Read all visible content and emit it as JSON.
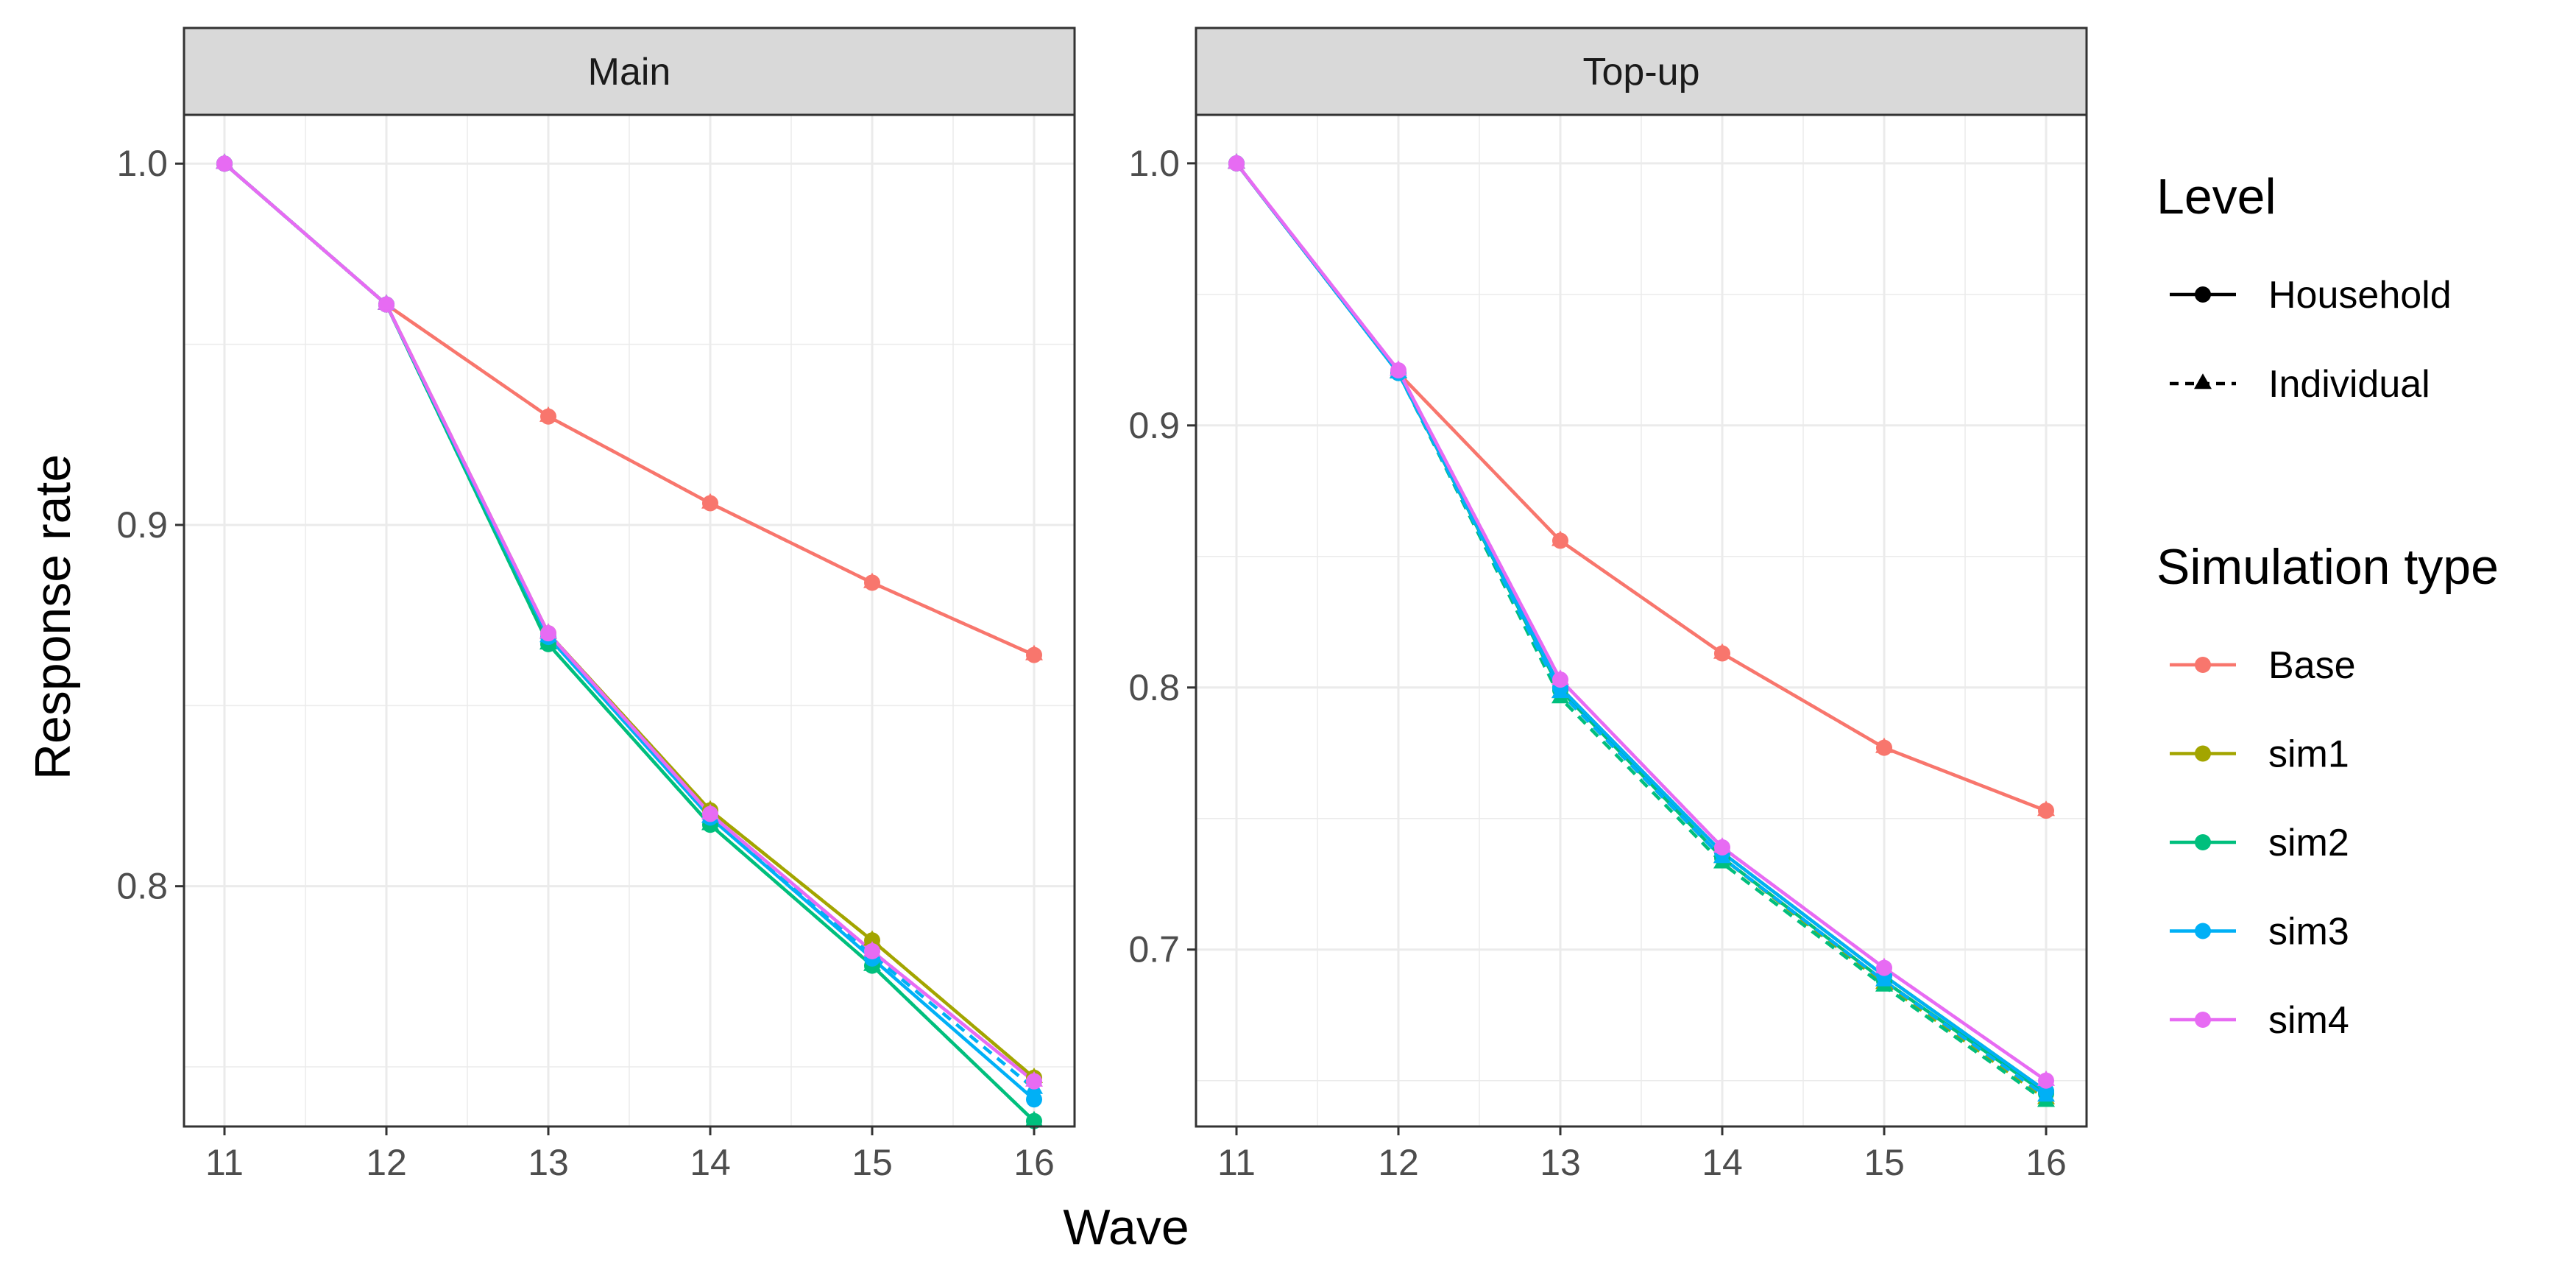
{
  "chart_data": {
    "type": "line",
    "xlabel": "Wave",
    "ylabel": "Response rate",
    "x": [
      11,
      12,
      13,
      14,
      15,
      16
    ],
    "legend": {
      "placement": "right",
      "level": {
        "title": "Level",
        "entries": [
          {
            "name": "Household",
            "linetype": "solid",
            "shape": "circle"
          },
          {
            "name": "Individual",
            "linetype": "dashed",
            "shape": "triangle"
          }
        ]
      },
      "simulation": {
        "title": "Simulation type",
        "entries": [
          {
            "name": "Base",
            "color": "#F8766D"
          },
          {
            "name": "sim1",
            "color": "#A3A500"
          },
          {
            "name": "sim2",
            "color": "#00BF7D"
          },
          {
            "name": "sim3",
            "color": "#00B0F6"
          },
          {
            "name": "sim4",
            "color": "#E76BF3"
          }
        ]
      }
    },
    "panels": [
      {
        "title": "Main",
        "ylim": [
          0.7335,
          1.0135
        ],
        "yticks": [
          0.8,
          0.9,
          1.0
        ],
        "ytick_labels": [
          "0.8",
          "0.9",
          "1.0"
        ],
        "grid": true,
        "series": [
          {
            "sim": "Base",
            "level": "Household",
            "values": [
              1.0,
              0.961,
              0.93,
              0.906,
              0.884,
              0.864
            ]
          },
          {
            "sim": "Base",
            "level": "Individual",
            "values": [
              1.0,
              0.961,
              0.93,
              0.906,
              0.884,
              0.864
            ]
          },
          {
            "sim": "sim1",
            "level": "Household",
            "values": [
              1.0,
              0.961,
              0.87,
              0.821,
              0.785,
              0.747
            ]
          },
          {
            "sim": "sim1",
            "level": "Individual",
            "values": [
              1.0,
              0.961,
              0.87,
              0.821,
              0.785,
              0.747
            ]
          },
          {
            "sim": "sim2",
            "level": "Household",
            "values": [
              1.0,
              0.961,
              0.867,
              0.817,
              0.778,
              0.735
            ]
          },
          {
            "sim": "sim2",
            "level": "Individual",
            "values": [
              1.0,
              0.961,
              0.867,
              0.817,
              0.778,
              0.735
            ]
          },
          {
            "sim": "sim3",
            "level": "Household",
            "values": [
              1.0,
              0.961,
              0.869,
              0.819,
              0.78,
              0.741
            ]
          },
          {
            "sim": "sim3",
            "level": "Individual",
            "values": [
              1.0,
              0.961,
              0.869,
              0.819,
              0.781,
              0.744
            ]
          },
          {
            "sim": "sim4",
            "level": "Household",
            "values": [
              1.0,
              0.961,
              0.87,
              0.82,
              0.782,
              0.746
            ]
          },
          {
            "sim": "sim4",
            "level": "Individual",
            "values": [
              1.0,
              0.961,
              0.87,
              0.82,
              0.782,
              0.746
            ]
          }
        ]
      },
      {
        "title": "Top-up",
        "ylim": [
          0.6325,
          1.0185
        ],
        "yticks": [
          0.7,
          0.8,
          0.9,
          1.0
        ],
        "ytick_labels": [
          "0.7",
          "0.8",
          "0.9",
          "1.0"
        ],
        "grid": true,
        "series": [
          {
            "sim": "Base",
            "level": "Household",
            "values": [
              1.0,
              0.92,
              0.856,
              0.813,
              0.777,
              0.753
            ]
          },
          {
            "sim": "Base",
            "level": "Individual",
            "values": [
              1.0,
              0.92,
              0.856,
              0.813,
              0.777,
              0.753
            ]
          },
          {
            "sim": "sim1",
            "level": "Household",
            "values": [
              1.0,
              0.92,
              0.8,
              0.737,
              0.69,
              0.646
            ]
          },
          {
            "sim": "sim1",
            "level": "Individual",
            "values": [
              1.0,
              0.92,
              0.798,
              0.735,
              0.687,
              0.643
            ]
          },
          {
            "sim": "sim2",
            "level": "Household",
            "values": [
              1.0,
              0.92,
              0.799,
              0.735,
              0.688,
              0.645
            ]
          },
          {
            "sim": "sim2",
            "level": "Individual",
            "values": [
              1.0,
              0.92,
              0.796,
              0.733,
              0.686,
              0.642
            ]
          },
          {
            "sim": "sim3",
            "level": "Household",
            "values": [
              1.0,
              0.92,
              0.8,
              0.737,
              0.69,
              0.646
            ]
          },
          {
            "sim": "sim3",
            "level": "Individual",
            "values": [
              1.0,
              0.92,
              0.798,
              0.735,
              0.688,
              0.644
            ]
          },
          {
            "sim": "sim4",
            "level": "Household",
            "values": [
              1.0,
              0.921,
              0.803,
              0.739,
              0.693,
              0.65
            ]
          },
          {
            "sim": "sim4",
            "level": "Individual",
            "values": [
              1.0,
              0.921,
              0.803,
              0.739,
              0.693,
              0.65
            ]
          }
        ]
      }
    ]
  }
}
